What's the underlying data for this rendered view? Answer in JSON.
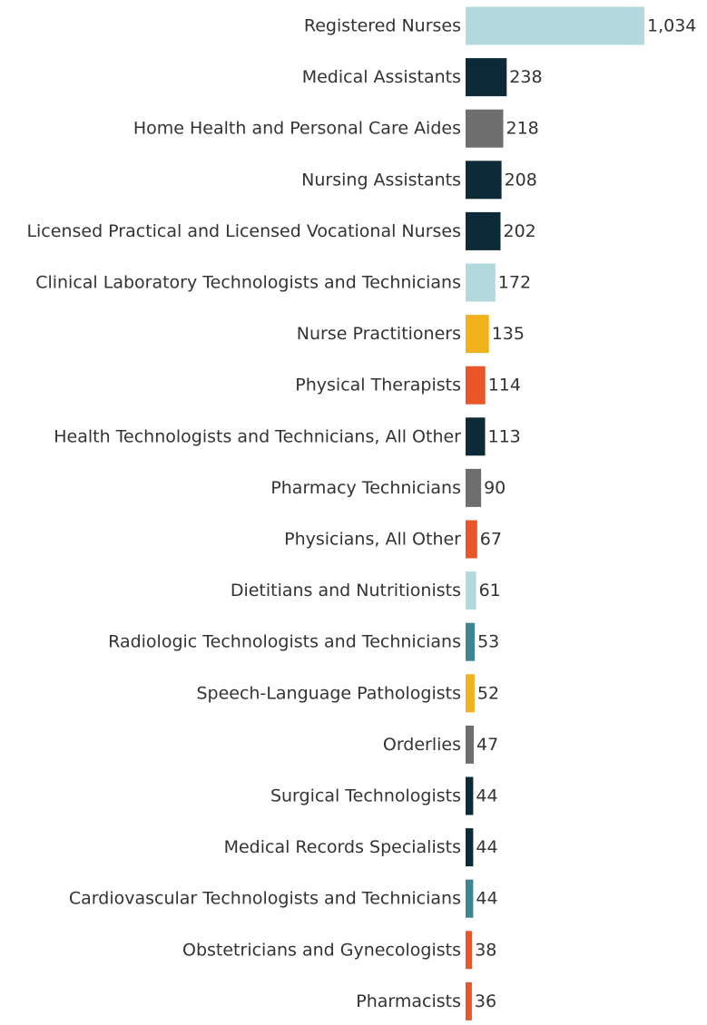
{
  "chart_data": {
    "type": "bar",
    "orientation": "horizontal",
    "title": "",
    "xlabel": "",
    "ylabel": "",
    "categories": [
      "Registered Nurses",
      "Medical Assistants",
      "Home Health and Personal Care Aides",
      "Nursing Assistants",
      "Licensed Practical and Licensed Vocational Nurses",
      "Clinical Laboratory Technologists and Technicians",
      "Nurse Practitioners",
      "Physical Therapists",
      "Health Technologists and Technicians, All Other",
      "Pharmacy Technicians",
      "Physicians, All Other",
      "Dietitians and Nutritionists",
      "Radiologic Technologists and Technicians",
      "Speech-Language Pathologists",
      "Orderlies",
      "Surgical Technologists",
      "Medical Records Specialists",
      "Cardiovascular Technologists and Technicians",
      "Obstetricians and Gynecologists",
      "Pharmacists"
    ],
    "values": [
      1034,
      238,
      218,
      208,
      202,
      172,
      135,
      114,
      113,
      90,
      67,
      61,
      53,
      52,
      47,
      44,
      44,
      44,
      38,
      36
    ],
    "value_labels": [
      "1,034",
      "238",
      "218",
      "208",
      "202",
      "172",
      "135",
      "114",
      "113",
      "90",
      "67",
      "61",
      "53",
      "52",
      "47",
      "44",
      "44",
      "44",
      "38",
      "36"
    ],
    "colors": [
      "#b3d9dc",
      "#0c2a38",
      "#6e6e6e",
      "#0c2a38",
      "#0c2a38",
      "#b3d9dc",
      "#f2b21c",
      "#e8562a",
      "#0c2a38",
      "#6e6e6e",
      "#e8562a",
      "#b3d9dc",
      "#3d8592",
      "#f2b21c",
      "#6e6e6e",
      "#0c2a38",
      "#0c2a38",
      "#3d8592",
      "#e8562a",
      "#e8562a"
    ],
    "xlim": [
      0,
      1034
    ],
    "grid": false,
    "legend": "none"
  }
}
